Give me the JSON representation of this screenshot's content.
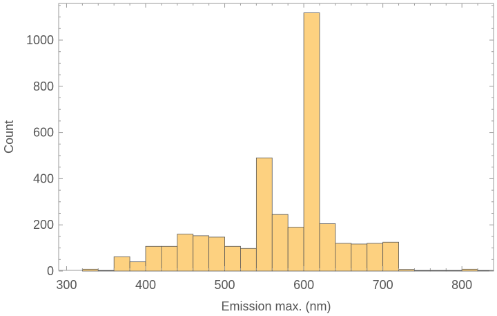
{
  "chart_data": {
    "type": "bar",
    "subtype": "histogram",
    "title": "",
    "xlabel": "Emission max. (nm)",
    "ylabel": "Count",
    "xlim": [
      290,
      840
    ],
    "ylim": [
      0,
      1180
    ],
    "bin_width": 20,
    "bin_starts": [
      320,
      340,
      360,
      380,
      400,
      420,
      440,
      460,
      480,
      500,
      520,
      540,
      560,
      580,
      600,
      620,
      640,
      660,
      680,
      700,
      720,
      740,
      760,
      780,
      800,
      820
    ],
    "values": [
      8,
      2,
      62,
      40,
      107,
      107,
      160,
      153,
      147,
      107,
      98,
      490,
      245,
      190,
      1118,
      205,
      120,
      117,
      120,
      125,
      7,
      2,
      2,
      2,
      8,
      2
    ],
    "x_ticks": [
      "300",
      "400",
      "500",
      "600",
      "700",
      "800"
    ],
    "y_ticks": [
      "0",
      "200",
      "400",
      "600",
      "800",
      "1000"
    ],
    "fill_color": "#fdd180",
    "edge_color": "#555555",
    "frame_color": "#999999",
    "grid": false,
    "legend": "none"
  }
}
